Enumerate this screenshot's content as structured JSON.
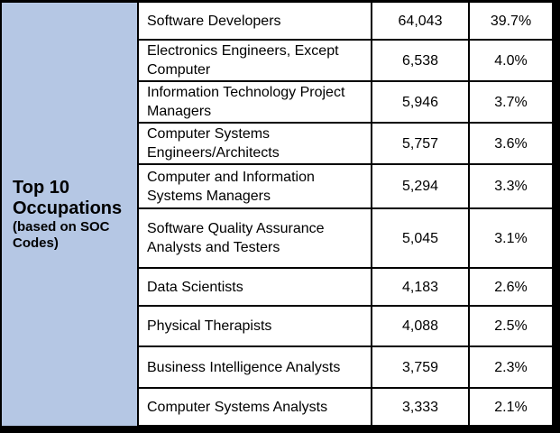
{
  "colors": {
    "header_bg": "#B5C7E4",
    "grid_border": "#000000",
    "cell_bg": "#FFFFFF",
    "text": "#000000"
  },
  "header": {
    "title": "Top 10 Occupations",
    "subtitle": "(based on SOC Codes)"
  },
  "chart_data": {
    "type": "table",
    "title": "Top 10 Occupations",
    "subtitle": "(based on SOC Codes)",
    "legend_position": "left-merged-header-cell",
    "grid": true,
    "rows": [
      {
        "occupation": "Software Developers",
        "count": "64,043",
        "percent": "39.7%"
      },
      {
        "occupation": "Electronics Engineers, Except Computer",
        "count": "6,538",
        "percent": "4.0%"
      },
      {
        "occupation": "Information Technology Project Managers",
        "count": "5,946",
        "percent": "3.7%"
      },
      {
        "occupation": "Computer Systems Engineers/Architects",
        "count": "5,757",
        "percent": "3.6%"
      },
      {
        "occupation": "Computer and Information Systems Managers",
        "count": "5,294",
        "percent": "3.3%"
      },
      {
        "occupation": "Software Quality Assurance Analysts and Testers",
        "count": "5,045",
        "percent": "3.1%"
      },
      {
        "occupation": "Data Scientists",
        "count": "4,183",
        "percent": "2.6%"
      },
      {
        "occupation": "Physical Therapists",
        "count": "4,088",
        "percent": "2.5%"
      },
      {
        "occupation": "Business Intelligence Analysts",
        "count": "3,759",
        "percent": "2.3%"
      },
      {
        "occupation": "Computer Systems Analysts",
        "count": "3,333",
        "percent": "2.1%"
      }
    ],
    "counts_numeric": [
      64043,
      6538,
      5946,
      5757,
      5294,
      5045,
      4183,
      4088,
      3759,
      3333
    ],
    "percents_numeric": [
      39.7,
      4.0,
      3.7,
      3.6,
      3.3,
      3.1,
      2.6,
      2.5,
      2.3,
      2.1
    ]
  }
}
